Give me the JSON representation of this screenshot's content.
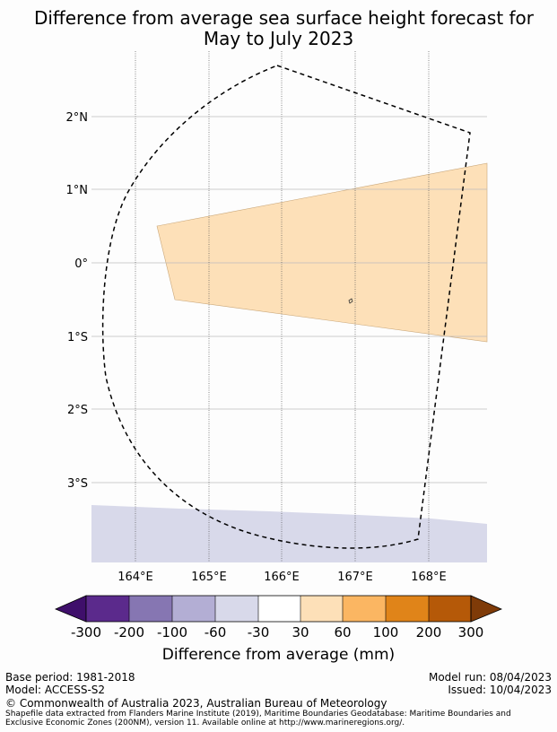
{
  "title": {
    "line1": "Difference from average sea surface height forecast for",
    "line2": "May to July 2023"
  },
  "map": {
    "lat_labels": [
      "2°N",
      "1°N",
      "0°",
      "1°S",
      "2°S",
      "3°S"
    ],
    "lon_labels": [
      "164°E",
      "165°E",
      "166°E",
      "167°E",
      "168°E"
    ],
    "colors": {
      "anomaly_positive_30_60": "#fde0b8",
      "anomaly_negative_30_60": "#d8d9ea",
      "eez_boundary": "#000000"
    }
  },
  "colorbar": {
    "ticks": [
      "-300",
      "-200",
      "-100",
      "-60",
      "-30",
      "30",
      "60",
      "100",
      "200",
      "300"
    ],
    "colors": [
      "#3f0f6b",
      "#5b2a8c",
      "#8676b2",
      "#b3aed4",
      "#d8d9ea",
      "#ffffff",
      "#fde0b8",
      "#fbb662",
      "#e08419",
      "#b55908",
      "#7f3b08"
    ],
    "title": "Difference from average (mm)"
  },
  "footer": {
    "base_period": "Base period: 1981-2018",
    "model": "Model: ACCESS-S2",
    "model_run": "Model run: 08/04/2023",
    "issued": "Issued: 10/04/2023",
    "copyright": "© Commonwealth of Australia 2023, Australian Bureau of Meteorology",
    "shapefile_line1": "Shapefile data extracted from Flanders Marine Institute (2019), Maritime Boundaries Geodatabase: Maritime Boundaries and",
    "shapefile_line2": "Exclusive Economic Zones (200NM), version 11. Available online at http://www.marineregions.org/."
  }
}
